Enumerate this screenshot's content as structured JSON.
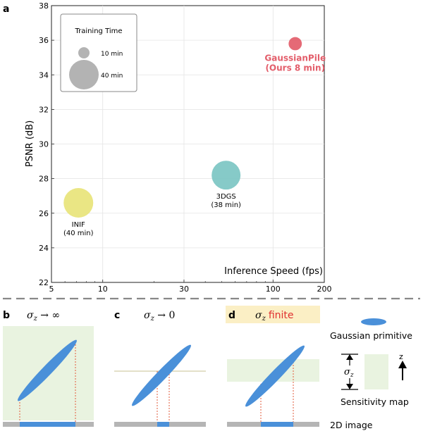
{
  "panel_labels": {
    "a": "a",
    "b": "b",
    "c": "c",
    "d": "d"
  },
  "chart_data": {
    "type": "scatter",
    "xlabel": "Inference Speed (fps)",
    "ylabel": "PSNR (dB)",
    "xscale": "log",
    "xlim": [
      5,
      200
    ],
    "ylim": [
      22,
      38
    ],
    "xticks": [
      5,
      10,
      30,
      100,
      200
    ],
    "yticks": [
      22,
      24,
      26,
      28,
      30,
      32,
      34,
      36,
      38
    ],
    "grid": true,
    "points": [
      {
        "label": "INIF",
        "sublabel": "(40 min)",
        "x": 7.2,
        "y": 26.6,
        "training_time_min": 40,
        "color": "#e8e47a"
      },
      {
        "label": "3DGS",
        "sublabel": "(38 min)",
        "x": 53,
        "y": 28.2,
        "training_time_min": 38,
        "color": "#7cc6c3"
      },
      {
        "label": "GaussianPile",
        "sublabel": "(Ours 8 min)",
        "x": 135,
        "y": 35.8,
        "training_time_min": 8,
        "color": "#e35d6a"
      }
    ],
    "legend": {
      "title": "Training Time",
      "entries": [
        {
          "label": "10 min",
          "minutes": 10
        },
        {
          "label": "40 min",
          "minutes": 40
        }
      ],
      "placement": "top-left"
    }
  },
  "diagrams": {
    "b": {
      "title_sigma": "σ",
      "title_sub": "z",
      "title_rest": " → ∞"
    },
    "c": {
      "title_sigma": "σ",
      "title_sub": "z",
      "title_rest": " → 0"
    },
    "d": {
      "title_sigma": "σ",
      "title_sub": "z",
      "title_word": "finite"
    }
  },
  "legend_items": {
    "gaussian": "Gaussian primitive",
    "sigma": "σ",
    "sigma_sub": "z",
    "z_axis": "z",
    "sensitivity": "Sensitivity map",
    "image": "2D image"
  },
  "colors": {
    "gaussian": "#4a90d9",
    "sensitivity": "#e9f3e0",
    "image_bar": "#b5b5b5",
    "highlight_bar": "#4a90d9",
    "projection": "#e25a3a",
    "title_highlight": "#fbefc5",
    "red_text": "#e03030"
  }
}
